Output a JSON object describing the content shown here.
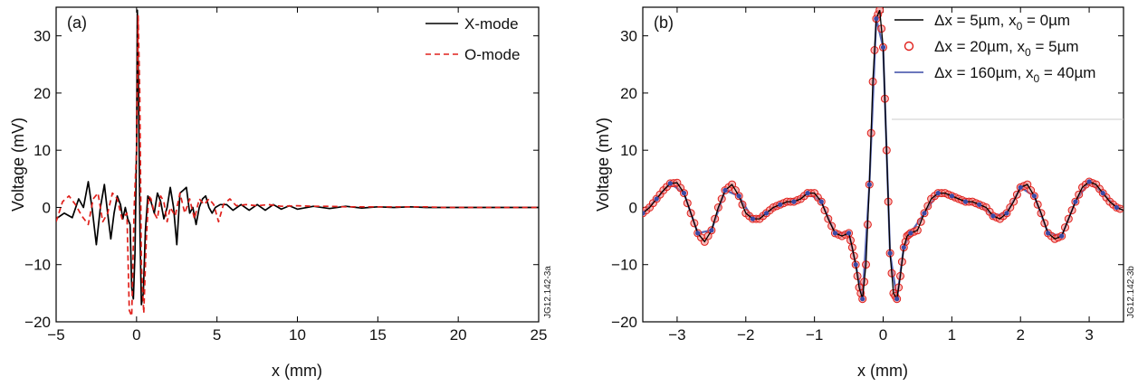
{
  "chart_data": [
    {
      "type": "line",
      "panel_label": "(a)",
      "xlabel": "x (mm)",
      "ylabel": "Voltage (mV)",
      "xlim": [
        -5,
        25
      ],
      "ylim": [
        -20,
        35
      ],
      "xticks": [
        -5,
        0,
        5,
        10,
        15,
        20,
        25
      ],
      "xtick_labels": [
        "−5",
        "0",
        "5",
        "10",
        "15",
        "20",
        "25"
      ],
      "yticks": [
        -20,
        -10,
        0,
        10,
        20,
        30
      ],
      "ytick_labels": [
        "−20",
        "−10",
        "0",
        "10",
        "20",
        "30"
      ],
      "legend_position": "top-right",
      "side_label": "JG12.142-3a",
      "series": [
        {
          "name": "X-mode",
          "color": "#000000",
          "style": "solid",
          "x": [
            -5,
            -4.5,
            -4,
            -3.6,
            -3.3,
            -3.0,
            -2.75,
            -2.5,
            -2.25,
            -2.0,
            -1.8,
            -1.6,
            -1.4,
            -1.2,
            -1.0,
            -0.85,
            -0.7,
            -0.55,
            -0.4,
            -0.3,
            -0.2,
            -0.1,
            0.0,
            0.05,
            0.12,
            0.22,
            0.3,
            0.42,
            0.55,
            0.7,
            0.9,
            1.1,
            1.3,
            1.5,
            1.7,
            1.9,
            2.1,
            2.3,
            2.5,
            2.7,
            2.9,
            3.1,
            3.3,
            3.5,
            3.7,
            3.9,
            4.1,
            4.3,
            4.5,
            4.7,
            4.9,
            5.2,
            5.6,
            6.0,
            6.5,
            7.0,
            7.5,
            8.0,
            8.5,
            9.0,
            9.5,
            10.0,
            11,
            12,
            13,
            14,
            15,
            16,
            17,
            18,
            19,
            20,
            21,
            22,
            23,
            24,
            25
          ],
          "y": [
            -2,
            -1,
            -1.8,
            1.5,
            0,
            4.5,
            -0.5,
            -6.5,
            0,
            4,
            -1,
            -5.5,
            -1,
            2,
            0.5,
            -2,
            0,
            -2,
            -3,
            -14,
            -16,
            -8,
            10,
            34.5,
            20,
            -5,
            -17,
            -15,
            -4,
            2,
            1,
            -1,
            2.5,
            1,
            -2,
            0,
            3.5,
            0,
            -6.5,
            2.5,
            3,
            3.5,
            -1,
            0,
            -3,
            0,
            1.5,
            2,
            0,
            -1,
            0,
            0.5,
            0.5,
            -0.5,
            0.5,
            -0.5,
            0.5,
            -0.5,
            0.5,
            -0.3,
            0.3,
            -0.3,
            0.2,
            -0.2,
            0.2,
            -0.1,
            0.1,
            0,
            0.1,
            0,
            0,
            0,
            0,
            0,
            0,
            0,
            0
          ]
        },
        {
          "name": "O-mode",
          "color": "#e0201b",
          "style": "dashed",
          "x": [
            -5,
            -4.6,
            -4.2,
            -3.8,
            -3.4,
            -3.0,
            -2.7,
            -2.4,
            -2.1,
            -1.8,
            -1.5,
            -1.2,
            -0.9,
            -0.6,
            -0.45,
            -0.3,
            -0.15,
            0.0,
            0.1,
            0.2,
            0.3,
            0.45,
            0.6,
            0.75,
            0.9,
            1.1,
            1.3,
            1.5,
            1.7,
            1.9,
            2.1,
            2.4,
            2.7,
            3.0,
            3.3,
            3.6,
            3.9,
            4.2,
            4.5,
            4.8,
            5.1,
            5.4,
            5.8,
            6.2,
            6.8,
            7.5,
            8.2,
            9.0,
            10,
            11,
            12,
            13,
            14,
            15,
            16,
            17,
            18,
            19,
            20,
            21,
            22,
            23,
            24,
            25
          ],
          "y": [
            -2.5,
            1,
            2,
            0.5,
            -1.5,
            -3,
            1.5,
            2.5,
            -2.5,
            -1,
            2.5,
            1.5,
            -2,
            -1,
            -18,
            -19,
            0,
            10,
            33.5,
            20,
            -10,
            -18.5,
            -6,
            2,
            1.5,
            -1,
            -2,
            2,
            1,
            -2.5,
            0,
            -1.5,
            2.5,
            -1,
            1.5,
            -2,
            1.5,
            0.5,
            1.5,
            0.5,
            -2.5,
            0.5,
            1.5,
            0.3,
            0.5,
            0.3,
            0.5,
            0.2,
            0.3,
            0.2,
            0.2,
            0.1,
            0.1,
            0.1,
            0.1,
            0.1,
            0.1,
            0,
            0,
            0,
            0,
            0,
            0,
            0
          ]
        }
      ]
    },
    {
      "type": "line",
      "panel_label": "(b)",
      "xlabel": "x (mm)",
      "ylabel": "Voltage (mV)",
      "xlim": [
        -3.5,
        3.5
      ],
      "ylim": [
        -20,
        35
      ],
      "xticks": [
        -3,
        -2,
        -1,
        0,
        1,
        2,
        3
      ],
      "xtick_labels": [
        "−3",
        "−2",
        "−1",
        "0",
        "1",
        "2",
        "3"
      ],
      "yticks": [
        -20,
        -10,
        0,
        10,
        20,
        30
      ],
      "ytick_labels": [
        "−20",
        "−10",
        "0",
        "10",
        "20",
        "30"
      ],
      "legend_position": "top-right",
      "side_label": "JG12.142-3b",
      "base_curve": {
        "x": [
          -3.5,
          -3.4,
          -3.3,
          -3.2,
          -3.1,
          -3.0,
          -2.9,
          -2.8,
          -2.7,
          -2.6,
          -2.5,
          -2.4,
          -2.3,
          -2.2,
          -2.1,
          -2.0,
          -1.9,
          -1.8,
          -1.7,
          -1.6,
          -1.5,
          -1.4,
          -1.3,
          -1.2,
          -1.1,
          -1.0,
          -0.9,
          -0.8,
          -0.7,
          -0.6,
          -0.5,
          -0.45,
          -0.4,
          -0.35,
          -0.3,
          -0.25,
          -0.2,
          -0.15,
          -0.1,
          -0.05,
          0.0,
          0.05,
          0.1,
          0.15,
          0.2,
          0.25,
          0.3,
          0.35,
          0.4,
          0.5,
          0.6,
          0.7,
          0.8,
          0.9,
          1.0,
          1.1,
          1.2,
          1.3,
          1.4,
          1.5,
          1.6,
          1.7,
          1.8,
          1.9,
          2.0,
          2.1,
          2.2,
          2.3,
          2.4,
          2.5,
          2.6,
          2.7,
          2.8,
          2.9,
          3.0,
          3.1,
          3.2,
          3.3,
          3.4,
          3.5
        ],
        "y": [
          -1,
          0,
          1.5,
          3,
          4.2,
          4.3,
          2.5,
          -1,
          -4.5,
          -6,
          -4,
          0,
          3,
          4,
          2,
          -1,
          -2,
          -2,
          -1,
          0,
          0.5,
          1,
          1,
          1.5,
          2.5,
          2.5,
          1,
          -2,
          -4.5,
          -5,
          -4.5,
          -7,
          -10,
          -14,
          -16,
          -10,
          4,
          22,
          33,
          34.5,
          28,
          10,
          -8,
          -15,
          -16,
          -12,
          -7,
          -5,
          -4.5,
          -4,
          -1,
          1.5,
          2.5,
          2.5,
          2,
          1.5,
          1,
          1,
          0.5,
          0,
          -1.5,
          -2,
          -1,
          1,
          3.5,
          4,
          2,
          -1,
          -4.5,
          -5.5,
          -5,
          -2,
          1,
          3.5,
          4.5,
          4,
          2.5,
          1,
          0,
          -0.5
        ]
      },
      "series": [
        {
          "name": "Δx = 5µm, x0 = 0µm",
          "label_parts": {
            "pre": "Δx = 5µm, x",
            "sub": "0",
            "post": " = 0µm"
          },
          "color": "#000000",
          "style": "solid",
          "step": 1,
          "offset": 0
        },
        {
          "name": "Δx = 20µm, x0 = 5µm",
          "label_parts": {
            "pre": "Δx = 20µm, x",
            "sub": "0",
            "post": " = 5µm"
          },
          "color": "#e0201b",
          "style": "circles",
          "step": 1,
          "offset": 0
        },
        {
          "name": "Δx = 160µm, x0 = 40µm",
          "label_parts": {
            "pre": "Δx = 160µm, x",
            "sub": "0",
            "post": " = 40µm"
          },
          "color": "#3a4aa6",
          "style": "solid-dots",
          "step": 2,
          "offset": 0
        }
      ]
    }
  ]
}
